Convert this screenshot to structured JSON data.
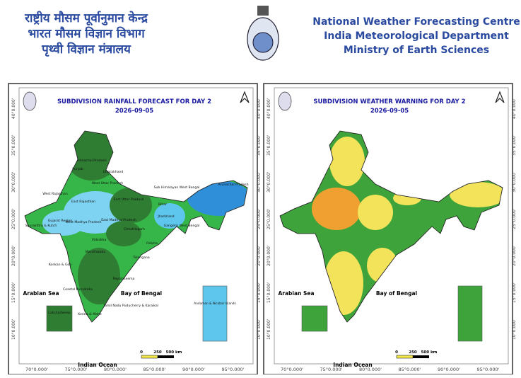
{
  "header": {
    "hindi": [
      "राष्ट्रीय मौसम पूर्वानुमान केन्द्र",
      "भारत मौसम विज्ञान विभाग",
      "पृथ्वी विज्ञान मंत्रालय"
    ],
    "english": [
      "National Weather Forecasting Centre",
      "India Meteorological Department",
      "Ministry of Earth Sciences"
    ]
  },
  "maps": [
    {
      "title": "SUBDIVISION RAINFALL FORECAST FOR DAY 2",
      "date": "2026-09-05",
      "regions": [
        "West Rajasthan",
        "East Rajasthan",
        "West Madhya Pradesh",
        "East Madhya Pradesh",
        "Gujarat Region",
        "Saurashtra & Kutch",
        "Vidarbha",
        "Chhattisgarh",
        "Odisha",
        "Telangana",
        "Marathwada",
        "Bihar",
        "Jharkhand",
        "Gangetic West Bengal",
        "Uttarakhand",
        "Himachal Pradesh",
        "Punjab",
        "East Uttar Pradesh",
        "West Uttar Pradesh",
        "Arunachal Pradesh",
        "Rayalaseema",
        "Tamil Nadu Puducherry & Karaikal",
        "Kerala & Mahe",
        "Coastal Karnataka",
        "Konkan & Goa",
        "Sub Himalayan West Bengal"
      ],
      "insets": [
        "Lakshadweep",
        "Andaman & Nicobar Islands"
      ]
    },
    {
      "title": "SUBDIVISION WEATHER WARNING FOR DAY 2",
      "date": "2026-09-05"
    }
  ],
  "labels": {
    "arabian_sea": "Arabian Sea",
    "bay_of_bengal": "Bay of Bengal",
    "indian_ocean": "Indian Ocean"
  },
  "scale": [
    "0",
    "250",
    "500 km"
  ],
  "longitudes": [
    "70°0.000'",
    "75°0.000'",
    "80°0.000'",
    "85°0.000'",
    "90°0.000'",
    "95°0.000'"
  ],
  "latitudes": [
    "40°0.000'",
    "35°0.000'",
    "30°0.000'",
    "25°0.000'",
    "20°0.000'",
    "15°0.000'",
    "10°0.000'"
  ]
}
